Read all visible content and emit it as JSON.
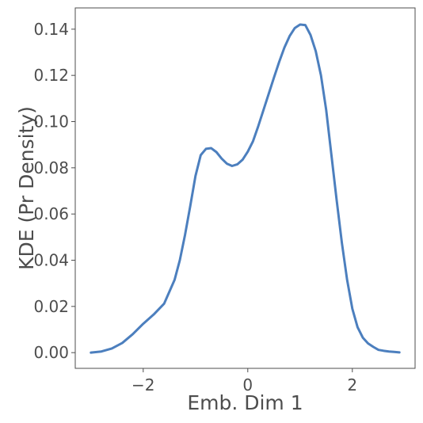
{
  "chart_data": {
    "type": "line",
    "title": "",
    "xlabel": "Emb. Dim 1",
    "ylabel": "KDE (Pr Density)",
    "xlim": [
      -3.3,
      3.2
    ],
    "ylim": [
      -0.0068,
      0.1492
    ],
    "x_ticks": [
      -2,
      0,
      2
    ],
    "x_tick_labels": [
      "−2",
      "0",
      "2"
    ],
    "y_ticks": [
      0.0,
      0.02,
      0.04,
      0.06,
      0.08,
      0.1,
      0.12,
      0.14
    ],
    "y_tick_labels": [
      "0.00",
      "0.02",
      "0.04",
      "0.06",
      "0.08",
      "0.10",
      "0.12",
      "0.14"
    ],
    "grid": false,
    "line_color": "#4c7fbe",
    "series": [
      {
        "x": [
          -3.0,
          -2.8,
          -2.6,
          -2.4,
          -2.2,
          -2.0,
          -1.8,
          -1.6,
          -1.4,
          -1.3,
          -1.2,
          -1.1,
          -1.0,
          -0.9,
          -0.8,
          -0.7,
          -0.6,
          -0.5,
          -0.4,
          -0.3,
          -0.2,
          -0.1,
          0.0,
          0.1,
          0.2,
          0.3,
          0.4,
          0.5,
          0.6,
          0.7,
          0.8,
          0.9,
          1.0,
          1.1,
          1.2,
          1.3,
          1.4,
          1.5,
          1.6,
          1.7,
          1.8,
          1.9,
          2.0,
          2.1,
          2.2,
          2.3,
          2.4,
          2.5,
          2.6,
          2.7,
          2.8,
          2.9
        ],
        "values": [
          0.0,
          0.0005,
          0.0018,
          0.0042,
          0.008,
          0.0125,
          0.0165,
          0.0212,
          0.0315,
          0.04,
          0.051,
          0.0635,
          0.0765,
          0.0855,
          0.0882,
          0.0885,
          0.0868,
          0.084,
          0.0818,
          0.0808,
          0.0815,
          0.0835,
          0.087,
          0.0915,
          0.098,
          0.105,
          0.112,
          0.119,
          0.1258,
          0.132,
          0.137,
          0.1405,
          0.142,
          0.1418,
          0.1375,
          0.1305,
          0.12,
          0.105,
          0.0855,
          0.066,
          0.0475,
          0.0315,
          0.019,
          0.011,
          0.0065,
          0.004,
          0.0025,
          0.0012,
          0.0008,
          0.0005,
          0.0003,
          0.0001
        ]
      }
    ]
  }
}
